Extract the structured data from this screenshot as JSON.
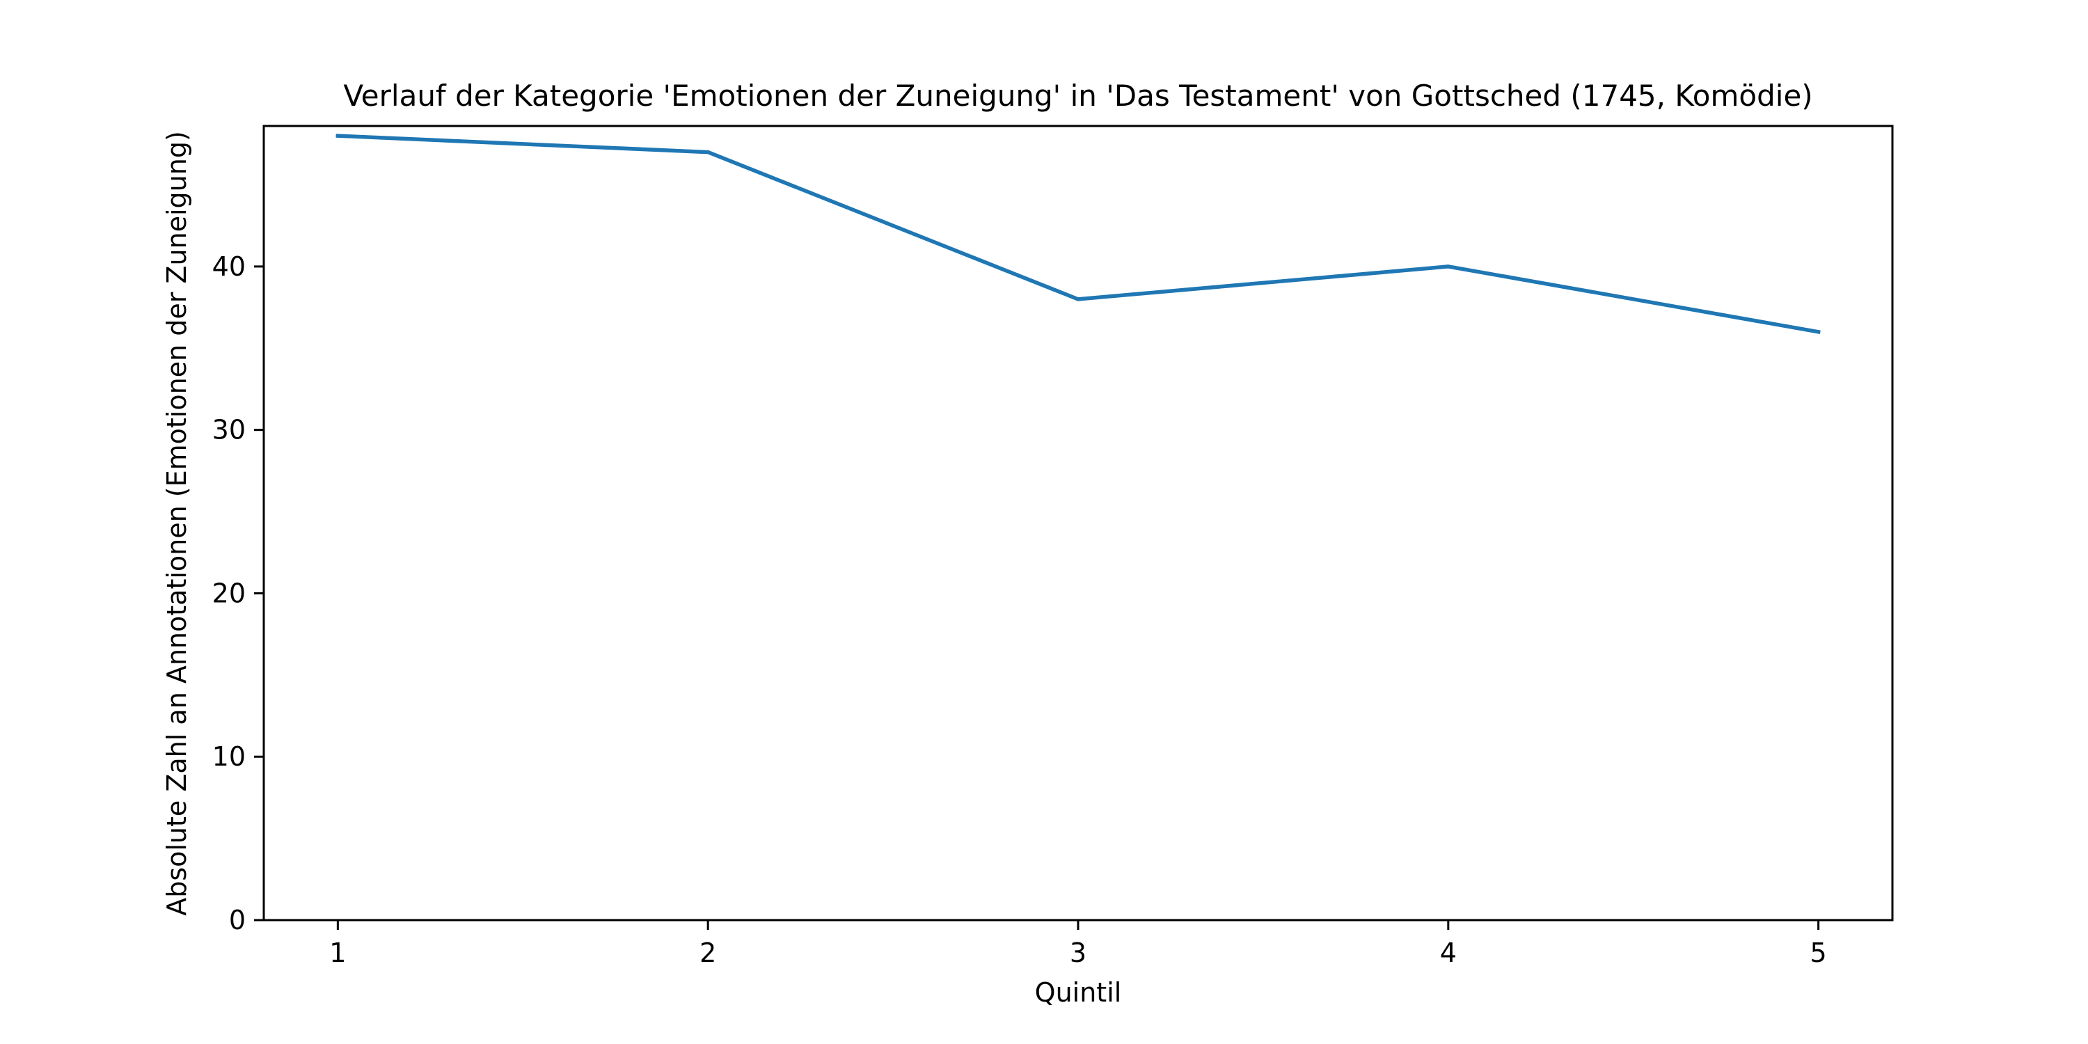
{
  "chart_data": {
    "type": "line",
    "title": "Verlauf der Kategorie 'Emotionen der Zuneigung' in 'Das Testament' von Gottsched (1745, Komödie)",
    "xlabel": "Quintil",
    "ylabel": "Absolute Zahl an Annotationen (Emotionen der Zuneigung)",
    "x": [
      1,
      2,
      3,
      4,
      5
    ],
    "series": [
      {
        "name": "Emotionen der Zuneigung",
        "values": [
          48,
          47,
          38,
          40,
          36
        ],
        "color": "#1f77b4"
      }
    ],
    "xlim": [
      0.8,
      5.2
    ],
    "ylim": [
      0,
      48.6
    ],
    "xticks": [
      1,
      2,
      3,
      4,
      5
    ],
    "yticks": [
      0,
      10,
      20,
      30,
      40
    ],
    "grid": false,
    "legend": "none"
  }
}
